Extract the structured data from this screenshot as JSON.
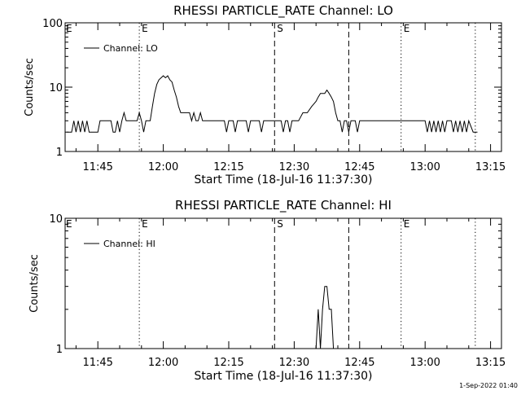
{
  "footer_timestamp": "1-Sep-2022 01:40",
  "chart_data": [
    {
      "type": "line",
      "title": "RHESSI PARTICLE_RATE Channel: LO",
      "xlabel": "Start Time (18-Jul-16 11:37:30)",
      "ylabel": "Counts/sec",
      "yscale": "log",
      "ylim": [
        1,
        100
      ],
      "xlim": [
        "11:37:30",
        "13:17:30"
      ],
      "y_tick_labels": [
        "1",
        "10",
        "100"
      ],
      "x_tick_labels": [
        "11:45",
        "12:00",
        "12:15",
        "12:30",
        "12:45",
        "13:00",
        "13:15"
      ],
      "legend": {
        "entries": [
          "Channel: LO"
        ],
        "placement": "top-left"
      },
      "markers": [
        {
          "x": "11:54:30",
          "label": "E",
          "style": "dotted"
        },
        {
          "x": "12:25:30",
          "label": "S",
          "style": "dashed"
        },
        {
          "x": "12:42:30",
          "label": "",
          "style": "dashed"
        },
        {
          "x": "12:54:30",
          "label": "E",
          "style": "dotted"
        },
        {
          "x": "13:11:30",
          "label": "",
          "style": "dotted"
        }
      ],
      "series": [
        {
          "values": [
            [
              "11:38:00",
              2
            ],
            [
              "11:39:00",
              2
            ],
            [
              "11:39:30",
              3
            ],
            [
              "11:40:00",
              2
            ],
            [
              "11:40:30",
              3
            ],
            [
              "11:41:00",
              2
            ],
            [
              "11:41:30",
              3
            ],
            [
              "11:42:00",
              2
            ],
            [
              "11:42:30",
              3
            ],
            [
              "11:43:00",
              2
            ],
            [
              "11:45:00",
              2
            ],
            [
              "11:45:30",
              3
            ],
            [
              "11:48:00",
              3
            ],
            [
              "11:48:30",
              2
            ],
            [
              "11:49:00",
              2
            ],
            [
              "11:49:30",
              3
            ],
            [
              "11:50:00",
              2
            ],
            [
              "11:50:30",
              3
            ],
            [
              "11:51:00",
              4
            ],
            [
              "11:51:30",
              3
            ],
            [
              "11:53:00",
              3
            ],
            [
              "11:53:30",
              3
            ],
            [
              "11:54:00",
              3
            ],
            [
              "11:54:30",
              4
            ],
            [
              "11:55:00",
              3
            ],
            [
              "11:55:30",
              2
            ],
            [
              "11:56:00",
              3
            ],
            [
              "11:57:00",
              3
            ],
            [
              "11:57:30",
              5
            ],
            [
              "11:58:00",
              8
            ],
            [
              "11:58:30",
              11
            ],
            [
              "11:59:00",
              13
            ],
            [
              "11:59:30",
              14
            ],
            [
              "12:00:00",
              15
            ],
            [
              "12:00:30",
              14
            ],
            [
              "12:01:00",
              15
            ],
            [
              "12:01:30",
              13
            ],
            [
              "12:02:00",
              12
            ],
            [
              "12:02:30",
              9
            ],
            [
              "12:03:00",
              7
            ],
            [
              "12:03:30",
              5
            ],
            [
              "12:04:00",
              4
            ],
            [
              "12:05:00",
              4
            ],
            [
              "12:06:00",
              4
            ],
            [
              "12:06:30",
              3
            ],
            [
              "12:07:00",
              4
            ],
            [
              "12:07:30",
              3
            ],
            [
              "12:08:00",
              3
            ],
            [
              "12:08:30",
              4
            ],
            [
              "12:09:00",
              3
            ],
            [
              "12:10:00",
              3
            ],
            [
              "12:11:00",
              3
            ],
            [
              "12:12:00",
              3
            ],
            [
              "12:13:00",
              3
            ],
            [
              "12:14:00",
              3
            ],
            [
              "12:14:30",
              2
            ],
            [
              "12:15:00",
              3
            ],
            [
              "12:16:00",
              3
            ],
            [
              "12:16:30",
              2
            ],
            [
              "12:17:00",
              3
            ],
            [
              "12:18:00",
              3
            ],
            [
              "12:19:00",
              3
            ],
            [
              "12:19:30",
              2
            ],
            [
              "12:20:00",
              3
            ],
            [
              "12:21:00",
              3
            ],
            [
              "12:22:00",
              3
            ],
            [
              "12:22:30",
              2
            ],
            [
              "12:23:00",
              3
            ],
            [
              "12:24:00",
              3
            ],
            [
              "12:25:00",
              3
            ],
            [
              "12:26:00",
              3
            ],
            [
              "12:27:00",
              3
            ],
            [
              "12:27:30",
              2
            ],
            [
              "12:28:00",
              3
            ],
            [
              "12:28:30",
              3
            ],
            [
              "12:29:00",
              2
            ],
            [
              "12:29:30",
              3
            ],
            [
              "12:30:00",
              3
            ],
            [
              "12:31:00",
              3
            ],
            [
              "12:32:00",
              4
            ],
            [
              "12:33:00",
              4
            ],
            [
              "12:34:00",
              5
            ],
            [
              "12:35:00",
              6
            ],
            [
              "12:35:30",
              7
            ],
            [
              "12:36:00",
              8
            ],
            [
              "12:37:00",
              8
            ],
            [
              "12:37:30",
              9
            ],
            [
              "12:38:00",
              8
            ],
            [
              "12:38:30",
              7
            ],
            [
              "12:39:00",
              6
            ],
            [
              "12:39:30",
              4
            ],
            [
              "12:40:00",
              3
            ],
            [
              "12:40:30",
              3
            ],
            [
              "12:41:00",
              2
            ],
            [
              "12:41:30",
              3
            ],
            [
              "12:42:00",
              3
            ],
            [
              "12:42:30",
              2
            ],
            [
              "12:43:00",
              3
            ],
            [
              "12:44:00",
              3
            ],
            [
              "12:44:30",
              2
            ],
            [
              "12:45:00",
              3
            ],
            [
              "12:46:00",
              3
            ],
            [
              "12:47:00",
              3
            ],
            [
              "12:48:00",
              3
            ],
            [
              "12:49:00",
              3
            ],
            [
              "12:50:00",
              3
            ],
            [
              "12:51:00",
              3
            ],
            [
              "12:52:00",
              3
            ],
            [
              "12:53:00",
              3
            ],
            [
              "12:54:00",
              3
            ],
            [
              "12:55:00",
              3
            ],
            [
              "12:56:00",
              3
            ],
            [
              "12:57:00",
              3
            ],
            [
              "12:58:00",
              3
            ],
            [
              "12:59:00",
              3
            ],
            [
              "13:00:00",
              3
            ],
            [
              "13:00:30",
              2
            ],
            [
              "13:01:00",
              3
            ],
            [
              "13:01:30",
              2
            ],
            [
              "13:02:00",
              3
            ],
            [
              "13:02:30",
              2
            ],
            [
              "13:03:00",
              3
            ],
            [
              "13:03:30",
              2
            ],
            [
              "13:04:00",
              3
            ],
            [
              "13:04:30",
              2
            ],
            [
              "13:05:00",
              3
            ],
            [
              "13:06:00",
              3
            ],
            [
              "13:06:30",
              2
            ],
            [
              "13:07:00",
              3
            ],
            [
              "13:07:30",
              2
            ],
            [
              "13:08:00",
              3
            ],
            [
              "13:08:30",
              2
            ],
            [
              "13:09:00",
              3
            ],
            [
              "13:09:30",
              2
            ],
            [
              "13:10:00",
              3
            ],
            [
              "13:11:00",
              2
            ],
            [
              "13:12:00",
              2
            ]
          ]
        }
      ]
    },
    {
      "type": "line",
      "title": "RHESSI PARTICLE_RATE Channel: HI",
      "xlabel": "Start Time (18-Jul-16 11:37:30)",
      "ylabel": "Counts/sec",
      "yscale": "log",
      "ylim": [
        1,
        10
      ],
      "xlim": [
        "11:37:30",
        "13:17:30"
      ],
      "y_tick_labels": [
        "1",
        "10"
      ],
      "x_tick_labels": [
        "11:45",
        "12:00",
        "12:15",
        "12:30",
        "12:45",
        "13:00",
        "13:15"
      ],
      "legend": {
        "entries": [
          "Channel: HI"
        ],
        "placement": "top-left"
      },
      "markers": [
        {
          "x": "11:54:30",
          "label": "E",
          "style": "dotted"
        },
        {
          "x": "12:25:30",
          "label": "S",
          "style": "dashed"
        },
        {
          "x": "12:42:30",
          "label": "",
          "style": "dashed"
        },
        {
          "x": "12:54:30",
          "label": "E",
          "style": "dotted"
        },
        {
          "x": "13:11:30",
          "label": "",
          "style": "dotted"
        }
      ],
      "series": [
        {
          "values": [
            [
              "12:35:00",
              1
            ],
            [
              "12:35:30",
              2
            ],
            [
              "12:36:00",
              1
            ],
            [
              "12:36:30",
              2
            ],
            [
              "12:37:00",
              3
            ],
            [
              "12:37:30",
              3
            ],
            [
              "12:38:00",
              2
            ],
            [
              "12:38:30",
              2
            ],
            [
              "12:39:00",
              1
            ]
          ]
        }
      ]
    }
  ]
}
